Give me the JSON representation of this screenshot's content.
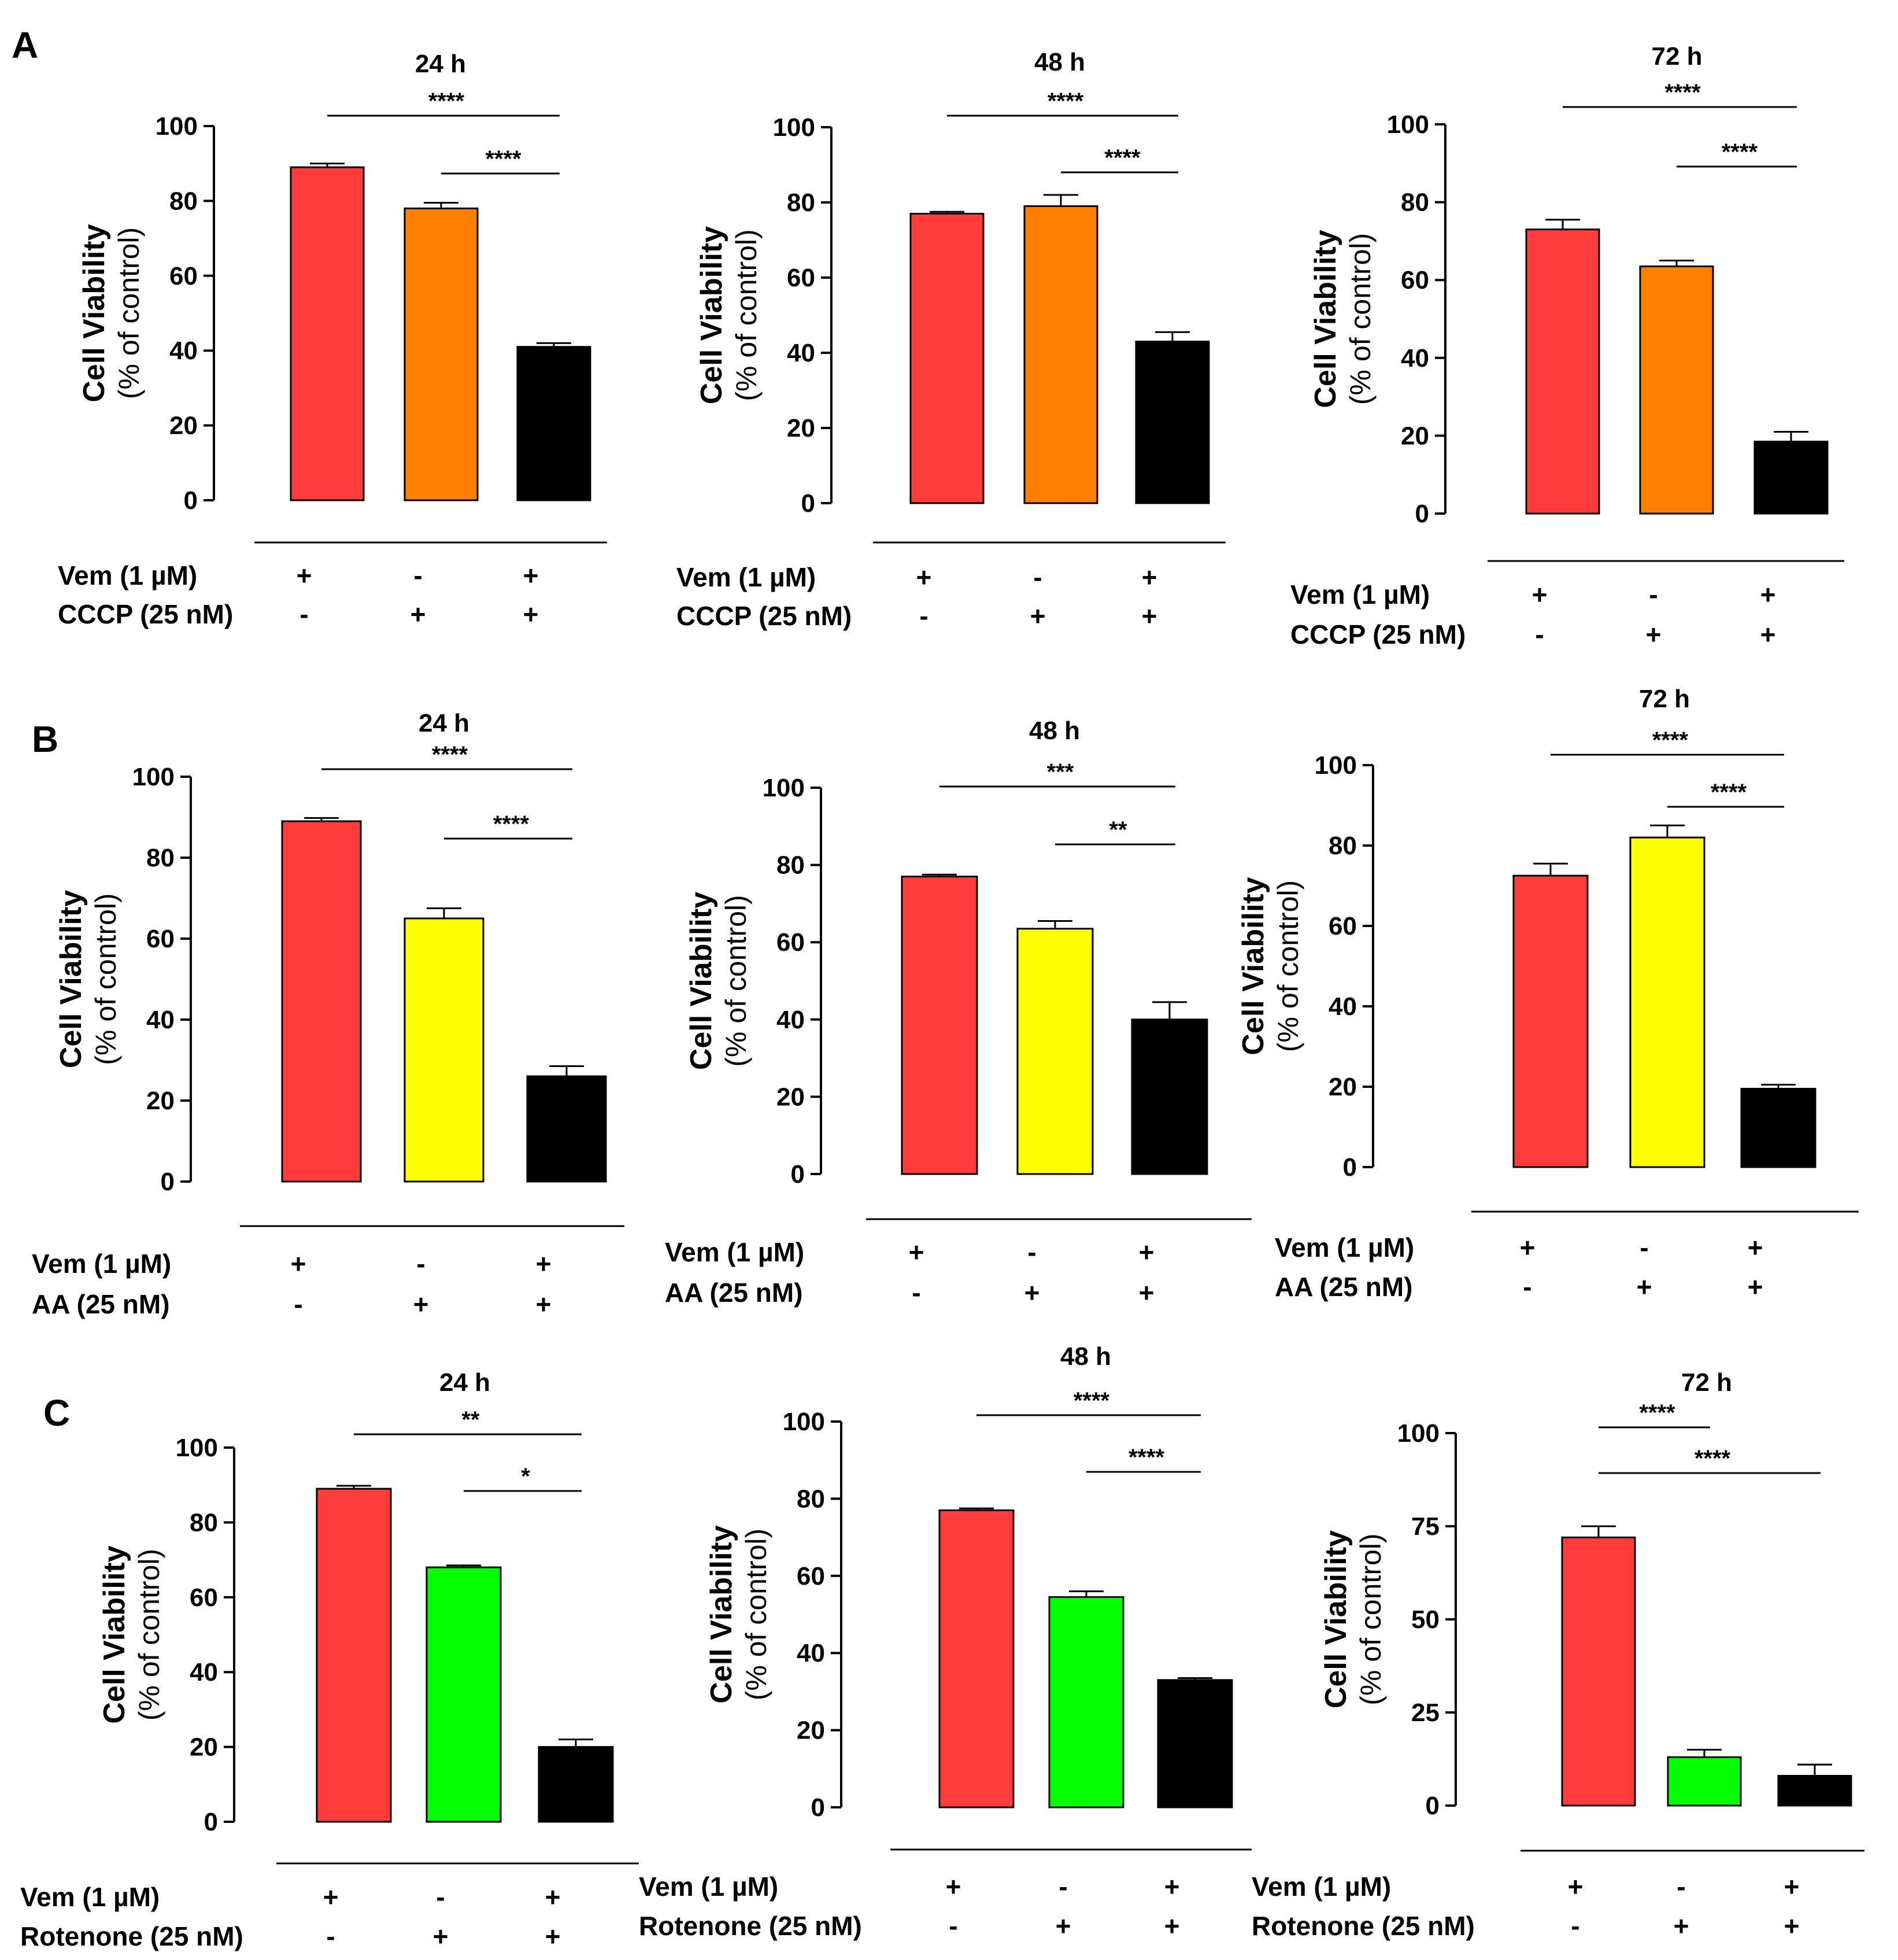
{
  "colors": {
    "vem": "#ff3b3b",
    "cccp": "#ff8000",
    "aa": "#ffff00",
    "rotenone": "#00ff00",
    "combo": "#000000"
  },
  "ylabel_main": "Cell Viability",
  "ylabel_sub": "(% of control)",
  "panels": [
    {
      "letter": "A",
      "row_labels": [
        "Vem (1 µM)",
        "CCCP (25 nM)"
      ],
      "charts": [
        {
          "type": "bar",
          "title": "24 h",
          "ylim": [
            0,
            100
          ],
          "yticks": [
            "0",
            "20",
            "40",
            "60",
            "80",
            "100"
          ],
          "values": [
            89,
            78,
            41
          ],
          "errors": [
            1,
            1.5,
            1
          ],
          "colors": [
            "vem",
            "cccp",
            "combo"
          ],
          "row1": [
            "+",
            "-",
            "+"
          ],
          "row2": [
            "-",
            "+",
            "+"
          ],
          "sig": [
            {
              "from": 0,
              "to": 2,
              "label": "****",
              "level": 1
            },
            {
              "from": 1,
              "to": 2,
              "label": "****",
              "level": 0
            }
          ]
        },
        {
          "type": "bar",
          "title": "48 h",
          "ylim": [
            0,
            100
          ],
          "yticks": [
            "0",
            "20",
            "40",
            "60",
            "80",
            "100"
          ],
          "values": [
            77,
            79,
            43
          ],
          "errors": [
            0.5,
            3,
            2.5
          ],
          "colors": [
            "vem",
            "cccp",
            "combo"
          ],
          "row1": [
            "+",
            "-",
            "+"
          ],
          "row2": [
            "-",
            "+",
            "+"
          ],
          "sig": [
            {
              "from": 0,
              "to": 2,
              "label": "****",
              "level": 1
            },
            {
              "from": 1,
              "to": 2,
              "label": "****",
              "level": 0
            }
          ]
        },
        {
          "type": "bar",
          "title": "72 h",
          "ylim": [
            0,
            100
          ],
          "yticks": [
            "0",
            "20",
            "40",
            "60",
            "80",
            "100"
          ],
          "values": [
            73,
            63.5,
            18.5
          ],
          "errors": [
            2.5,
            1.5,
            2.5
          ],
          "colors": [
            "vem",
            "cccp",
            "combo"
          ],
          "row1": [
            "+",
            "-",
            "+"
          ],
          "row2": [
            "-",
            "+",
            "+"
          ],
          "sig": [
            {
              "from": 0,
              "to": 2,
              "label": "****",
              "level": 1
            },
            {
              "from": 1,
              "to": 2,
              "label": "****",
              "level": 0
            }
          ]
        }
      ]
    },
    {
      "letter": "B",
      "row_labels": [
        "Vem (1 µM)",
        "AA (25 nM)"
      ],
      "charts": [
        {
          "type": "bar",
          "title": "24 h",
          "ylim": [
            0,
            100
          ],
          "yticks": [
            "0",
            "20",
            "40",
            "60",
            "80",
            "100"
          ],
          "values": [
            89,
            65,
            26
          ],
          "errors": [
            0.8,
            2.5,
            2.5
          ],
          "colors": [
            "vem",
            "aa",
            "combo"
          ],
          "row1": [
            "+",
            "-",
            "+"
          ],
          "row2": [
            "-",
            "+",
            "+"
          ],
          "sig": [
            {
              "from": 0,
              "to": 2,
              "label": "****",
              "level": 1
            },
            {
              "from": 1,
              "to": 2,
              "label": "****",
              "level": 0
            }
          ]
        },
        {
          "type": "bar",
          "title": "48 h",
          "ylim": [
            0,
            100
          ],
          "yticks": [
            "0",
            "20",
            "40",
            "60",
            "80",
            "100"
          ],
          "values": [
            77,
            63.5,
            40
          ],
          "errors": [
            0.5,
            2,
            4.5
          ],
          "colors": [
            "vem",
            "aa",
            "combo"
          ],
          "row1": [
            "+",
            "-",
            "+"
          ],
          "row2": [
            "-",
            "+",
            "+"
          ],
          "sig": [
            {
              "from": 0,
              "to": 2,
              "label": "***",
              "level": 1
            },
            {
              "from": 1,
              "to": 2,
              "label": "**",
              "level": 0
            }
          ]
        },
        {
          "type": "bar",
          "title": "72 h",
          "ylim": [
            0,
            100
          ],
          "yticks": [
            "0",
            "20",
            "40",
            "60",
            "80",
            "100"
          ],
          "values": [
            72.5,
            82,
            19.5
          ],
          "errors": [
            3,
            3,
            1
          ],
          "colors": [
            "vem",
            "aa",
            "combo"
          ],
          "row1": [
            "+",
            "-",
            "+"
          ],
          "row2": [
            "-",
            "+",
            "+"
          ],
          "sig": [
            {
              "from": 0,
              "to": 2,
              "label": "****",
              "level": 1
            },
            {
              "from": 1,
              "to": 2,
              "label": "****",
              "level": 0
            }
          ]
        }
      ]
    },
    {
      "letter": "C",
      "row_labels": [
        "Vem (1 µM)",
        "Rotenone (25 nM)"
      ],
      "charts": [
        {
          "type": "bar",
          "title": "24 h",
          "ylim": [
            0,
            100
          ],
          "yticks": [
            "0",
            "20",
            "40",
            "60",
            "80",
            "100"
          ],
          "values": [
            89,
            68,
            20
          ],
          "errors": [
            0.8,
            0.5,
            2
          ],
          "colors": [
            "vem",
            "rotenone",
            "combo"
          ],
          "row1": [
            "+",
            "-",
            "+"
          ],
          "row2": [
            "-",
            "+",
            "+"
          ],
          "sig": [
            {
              "from": 0,
              "to": 2,
              "label": "**",
              "level": 1
            },
            {
              "from": 1,
              "to": 2,
              "label": "*",
              "level": 0
            }
          ]
        },
        {
          "type": "bar",
          "title": "48 h",
          "ylim": [
            0,
            100
          ],
          "yticks": [
            "0",
            "20",
            "40",
            "60",
            "80",
            "100"
          ],
          "values": [
            77,
            54.5,
            33
          ],
          "errors": [
            0.5,
            1.5,
            0.5
          ],
          "colors": [
            "vem",
            "rotenone",
            "combo"
          ],
          "row1": [
            "+",
            "-",
            "+"
          ],
          "row2": [
            "-",
            "+",
            "+"
          ],
          "sig": [
            {
              "from": 0,
              "to": 2,
              "label": "****",
              "level": 1
            },
            {
              "from": 1,
              "to": 2,
              "label": "****",
              "level": 0
            }
          ]
        },
        {
          "type": "bar",
          "title": "72 h",
          "ylim": [
            0,
            100
          ],
          "yticks": [
            "0",
            "25",
            "50",
            "75",
            "100"
          ],
          "values": [
            72,
            13,
            8
          ],
          "errors": [
            3,
            2,
            3
          ],
          "colors": [
            "vem",
            "rotenone",
            "combo"
          ],
          "row1": [
            "+",
            "-",
            "+"
          ],
          "row2": [
            "-",
            "+",
            "+"
          ],
          "sig": [
            {
              "from": 0,
              "to": 1,
              "label": "****",
              "level": 1
            },
            {
              "from": 0,
              "to": 2,
              "label": "****",
              "level": 0
            }
          ]
        }
      ]
    }
  ]
}
